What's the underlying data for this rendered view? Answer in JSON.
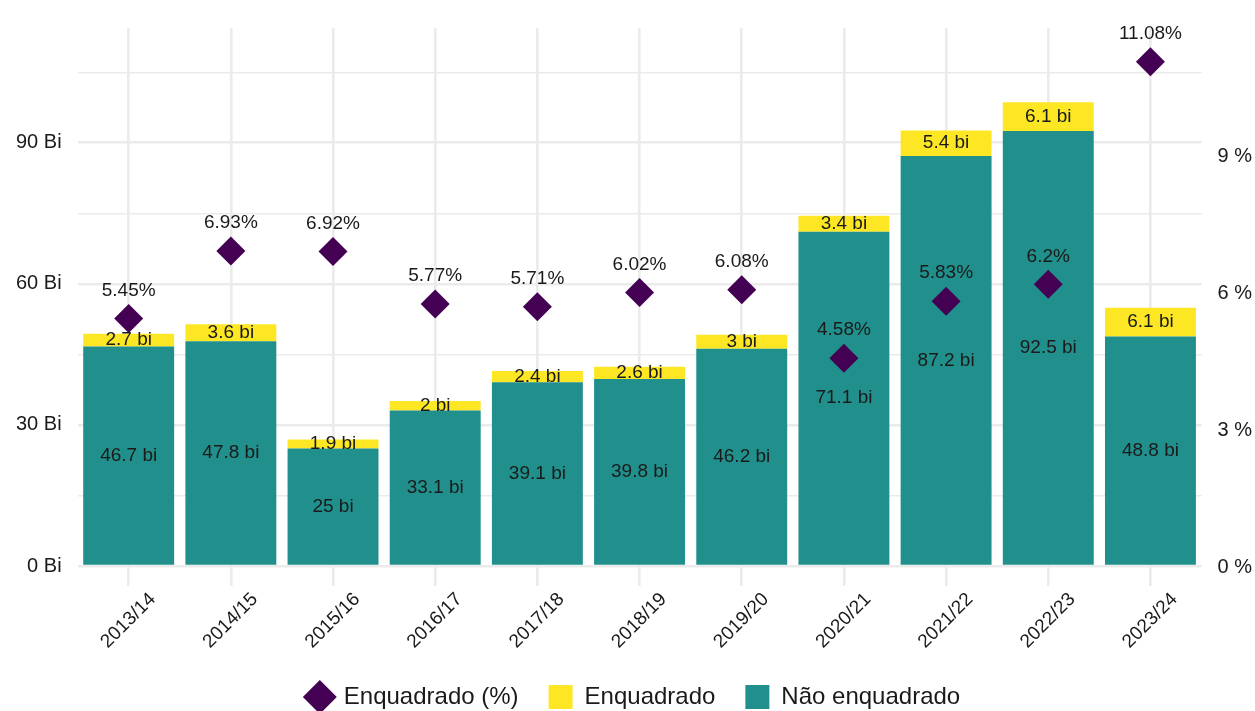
{
  "chart_data": {
    "type": "bar",
    "stacked": true,
    "categories": [
      "2013/14",
      "2014/15",
      "2015/16",
      "2016/17",
      "2017/18",
      "2018/19",
      "2019/20",
      "2020/21",
      "2021/22",
      "2022/23",
      "2023/24"
    ],
    "series": [
      {
        "name": "Não enquadrado",
        "color": "#21908c",
        "values": [
          46.7,
          47.8,
          25,
          33.1,
          39.1,
          39.8,
          46.2,
          71.1,
          87.2,
          92.5,
          48.8
        ],
        "value_labels": [
          "46.7 bi",
          "47.8 bi",
          "25 bi",
          "33.1 bi",
          "39.1 bi",
          "39.8 bi",
          "46.2 bi",
          "71.1 bi",
          "87.2 bi",
          "92.5 bi",
          "48.8 bi"
        ]
      },
      {
        "name": "Enquadrado",
        "color": "#fde725",
        "values": [
          2.7,
          3.6,
          1.9,
          2,
          2.4,
          2.6,
          3,
          3.4,
          5.4,
          6.1,
          6.1
        ],
        "value_labels": [
          "2.7 bi",
          "3.6 bi",
          "1.9 bi",
          "2 bi",
          "2.4 bi",
          "2.6 bi",
          "3 bi",
          "3.4 bi",
          "5.4 bi",
          "6.1 bi",
          "6.1 bi"
        ]
      },
      {
        "name": "Enquadrado (%)",
        "type": "scatter",
        "axis": "y2",
        "color": "#440154",
        "values": [
          5.45,
          6.93,
          6.92,
          5.77,
          5.71,
          6.02,
          6.08,
          4.58,
          5.83,
          6.2,
          11.08
        ],
        "value_labels": [
          "5.45%",
          "6.93%",
          "6.92%",
          "5.77%",
          "5.71%",
          "6.02%",
          "6.08%",
          "4.58%",
          "5.83%",
          "6.2%",
          "11.08%"
        ]
      }
    ],
    "ylim": [
      -4.3,
      114.4
    ],
    "yticks": [
      {
        "value": 0,
        "label": "0 Bi"
      },
      {
        "value": 15,
        "label": null
      },
      {
        "value": 30,
        "label": "30 Bi"
      },
      {
        "value": 45,
        "label": null
      },
      {
        "value": 60,
        "label": "60 Bi"
      },
      {
        "value": 75,
        "label": null
      },
      {
        "value": 90,
        "label": "90 Bi"
      },
      {
        "value": 105,
        "label": null
      }
    ],
    "y2lim": [
      -0.42,
      11.82
    ],
    "y2ticks": [
      {
        "value": 0,
        "label": "0 %"
      },
      {
        "value": 3,
        "label": "3 %"
      },
      {
        "value": 6,
        "label": "6 %"
      },
      {
        "value": 9,
        "label": "9 %"
      }
    ],
    "grid": true,
    "legend": "bottom",
    "marker": "diamond"
  }
}
